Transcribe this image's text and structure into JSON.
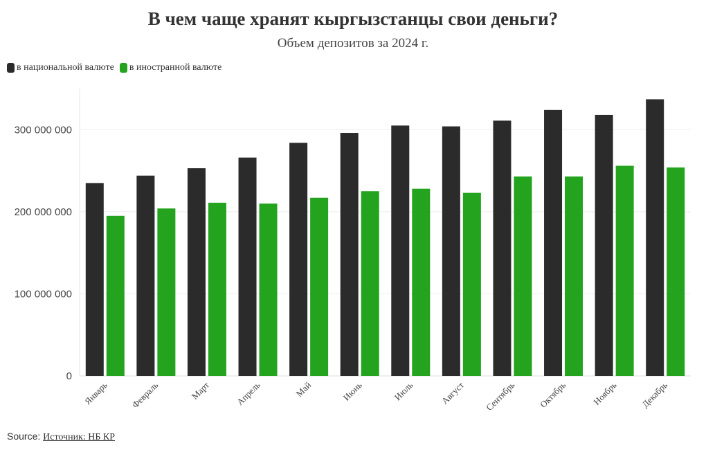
{
  "title": "В чем чаще хранят кыргызстанцы свои деньги?",
  "subtitle": "Объем депозитов за 2024 г.",
  "legend": [
    {
      "label": "в национальной валюте",
      "color": "#2b2b2b"
    },
    {
      "label": "в иностранной валюте",
      "color": "#23a31e"
    }
  ],
  "source": {
    "prefix": "Source: ",
    "link_text": "Источник: НБ КР"
  },
  "chart_data": {
    "type": "bar",
    "categories": [
      "Январь",
      "Февраль",
      "Март",
      "Апрель",
      "Май",
      "Июнь",
      "Июль",
      "Август",
      "Сентябрь",
      "Октябрь",
      "Ноябрь",
      "Декабрь"
    ],
    "series": [
      {
        "name": "в национальной валюте",
        "color": "#2b2b2b",
        "values": [
          235000000,
          244000000,
          253000000,
          266000000,
          284000000,
          296000000,
          305000000,
          304000000,
          311000000,
          324000000,
          318000000,
          337000000
        ]
      },
      {
        "name": "в иностранной валюте",
        "color": "#23a31e",
        "values": [
          195000000,
          204000000,
          211000000,
          210000000,
          217000000,
          225000000,
          228000000,
          223000000,
          243000000,
          243000000,
          256000000,
          254000000
        ]
      }
    ],
    "yticks": [
      0,
      100000000,
      200000000,
      300000000
    ],
    "ytick_labels": [
      "0",
      "100 000 000",
      "200 000 000",
      "300 000 000"
    ],
    "ylim": [
      0,
      350000000
    ],
    "xlabel": "",
    "ylabel": "",
    "grid": true,
    "legend_position": "top-left"
  }
}
